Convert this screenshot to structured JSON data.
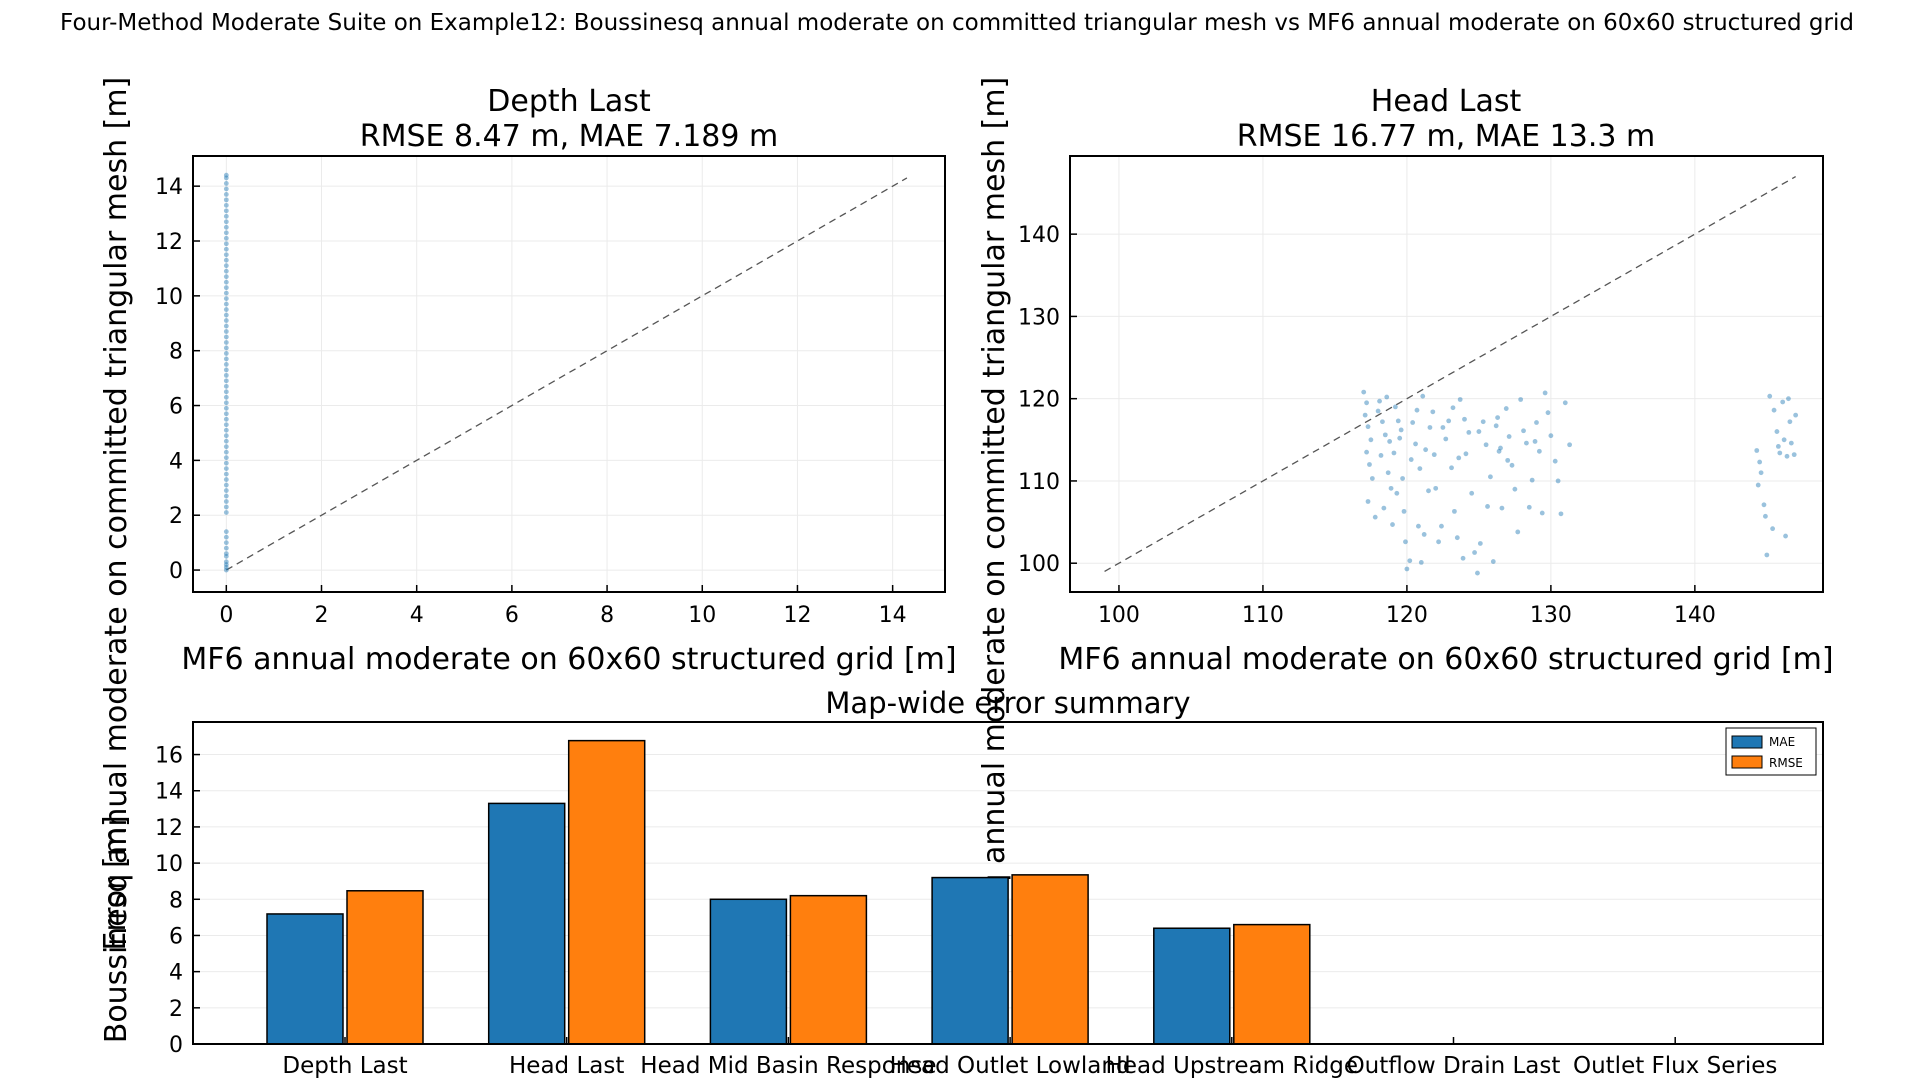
{
  "suptitle": "Four-Method Moderate Suite on Example12: Boussinesq annual moderate on committed triangular mesh vs MF6 annual moderate on 60x60 structured grid",
  "chart_data": [
    {
      "type": "scatter",
      "title": "Depth Last",
      "subtitle": "RMSE 8.47 m, MAE 7.189 m",
      "xlabel": "MF6 annual moderate on 60x60 structured grid [m]",
      "ylabel": "Boussinesq annual moderate on committed triangular mesh [m]",
      "xlim": [
        -0.7,
        15.1
      ],
      "ylim": [
        -0.8,
        15.1
      ],
      "xticks": [
        0,
        2,
        4,
        6,
        8,
        10,
        12,
        14
      ],
      "yticks": [
        0,
        2,
        4,
        6,
        8,
        10,
        12,
        14
      ],
      "grid": true,
      "point_color": "#1f77b4",
      "reference_line": [
        0,
        14.3
      ],
      "points": [
        [
          0,
          0.0
        ],
        [
          0,
          0.1
        ],
        [
          0,
          0.2
        ],
        [
          0,
          0.3
        ],
        [
          0,
          0.5
        ],
        [
          0,
          0.6
        ],
        [
          0,
          0.8
        ],
        [
          0,
          1.0
        ],
        [
          0,
          1.2
        ],
        [
          0,
          1.4
        ],
        [
          0,
          2.1
        ],
        [
          0,
          2.3
        ],
        [
          0,
          2.5
        ],
        [
          0,
          2.7
        ],
        [
          0,
          2.9
        ],
        [
          0,
          3.1
        ],
        [
          0,
          3.3
        ],
        [
          0,
          3.5
        ],
        [
          0,
          3.7
        ],
        [
          0,
          3.9
        ],
        [
          0,
          4.1
        ],
        [
          0,
          4.3
        ],
        [
          0,
          4.5
        ],
        [
          0,
          4.7
        ],
        [
          0,
          4.9
        ],
        [
          0,
          5.1
        ],
        [
          0,
          5.3
        ],
        [
          0,
          5.5
        ],
        [
          0,
          5.7
        ],
        [
          0,
          5.9
        ],
        [
          0,
          6.1
        ],
        [
          0,
          6.3
        ],
        [
          0,
          6.5
        ],
        [
          0,
          6.7
        ],
        [
          0,
          6.9
        ],
        [
          0,
          7.1
        ],
        [
          0,
          7.3
        ],
        [
          0,
          7.5
        ],
        [
          0,
          7.7
        ],
        [
          0,
          7.9
        ],
        [
          0,
          8.1
        ],
        [
          0,
          8.3
        ],
        [
          0,
          8.5
        ],
        [
          0,
          8.7
        ],
        [
          0,
          8.9
        ],
        [
          0,
          9.1
        ],
        [
          0,
          9.3
        ],
        [
          0,
          9.5
        ],
        [
          0,
          9.7
        ],
        [
          0,
          9.9
        ],
        [
          0,
          10.1
        ],
        [
          0,
          10.3
        ],
        [
          0,
          10.5
        ],
        [
          0,
          10.7
        ],
        [
          0,
          10.9
        ],
        [
          0,
          11.1
        ],
        [
          0,
          11.3
        ],
        [
          0,
          11.5
        ],
        [
          0,
          11.7
        ],
        [
          0,
          11.9
        ],
        [
          0,
          12.1
        ],
        [
          0,
          12.3
        ],
        [
          0,
          12.5
        ],
        [
          0,
          12.7
        ],
        [
          0,
          12.9
        ],
        [
          0,
          13.1
        ],
        [
          0,
          13.3
        ],
        [
          0,
          13.5
        ],
        [
          0,
          13.7
        ],
        [
          0,
          13.9
        ],
        [
          0,
          14.1
        ],
        [
          0,
          14.3
        ],
        [
          0,
          14.4
        ]
      ]
    },
    {
      "type": "scatter",
      "title": "Head Last",
      "subtitle": "RMSE 16.77 m, MAE 13.3 m",
      "xlabel": "MF6 annual moderate on 60x60 structured grid [m]",
      "ylabel": "Boussinesq annual moderate on committed triangular mesh [m]",
      "xlim": [
        96.6,
        148.9
      ],
      "ylim": [
        96.5,
        149.5
      ],
      "xticks": [
        100,
        110,
        120,
        130,
        140
      ],
      "yticks": [
        100,
        110,
        120,
        130,
        140
      ],
      "grid": true,
      "point_color": "#1f77b4",
      "reference_line": [
        99,
        147
      ],
      "points": [
        [
          117,
          120.8
        ],
        [
          117.2,
          119.5
        ],
        [
          117.1,
          118.0
        ],
        [
          117.3,
          116.6
        ],
        [
          117.5,
          115.0
        ],
        [
          117.2,
          113.5
        ],
        [
          117.4,
          112.0
        ],
        [
          117.6,
          110.3
        ],
        [
          117.3,
          107.5
        ],
        [
          117.8,
          105.6
        ],
        [
          118.0,
          118.5
        ],
        [
          118.3,
          117.2
        ],
        [
          118.5,
          115.6
        ],
        [
          118.2,
          113.1
        ],
        [
          118.7,
          111.0
        ],
        [
          118.9,
          109.1
        ],
        [
          118.4,
          106.7
        ],
        [
          119.0,
          104.7
        ],
        [
          118.6,
          120.2
        ],
        [
          119.2,
          119.0
        ],
        [
          119.4,
          117.3
        ],
        [
          119.5,
          115.2
        ],
        [
          119.1,
          113.4
        ],
        [
          119.7,
          110.3
        ],
        [
          119.3,
          108.5
        ],
        [
          119.8,
          106.3
        ],
        [
          120.0,
          99.3
        ],
        [
          120.2,
          100.3
        ],
        [
          119.9,
          102.6
        ],
        [
          120.4,
          117.1
        ],
        [
          120.6,
          114.5
        ],
        [
          120.3,
          112.6
        ],
        [
          120.8,
          104.5
        ],
        [
          121.0,
          100.1
        ],
        [
          121.2,
          103.5
        ],
        [
          121.5,
          108.8
        ],
        [
          121.3,
          113.8
        ],
        [
          121.6,
          116.5
        ],
        [
          121.8,
          118.4
        ],
        [
          121.1,
          120.3
        ],
        [
          122.0,
          109.1
        ],
        [
          122.2,
          102.6
        ],
        [
          122.4,
          104.5
        ],
        [
          122.7,
          115.1
        ],
        [
          122.9,
          117.3
        ],
        [
          123.1,
          111.6
        ],
        [
          123.3,
          106.3
        ],
        [
          123.5,
          103.1
        ],
        [
          123.7,
          119.9
        ],
        [
          123.9,
          100.6
        ],
        [
          124.1,
          113.3
        ],
        [
          124.3,
          115.9
        ],
        [
          124.5,
          108.5
        ],
        [
          124.7,
          101.3
        ],
        [
          124.9,
          98.8
        ],
        [
          125.1,
          102.4
        ],
        [
          125.3,
          117.2
        ],
        [
          125.5,
          114.4
        ],
        [
          125.8,
          110.5
        ],
        [
          126.0,
          100.2
        ],
        [
          126.2,
          116.7
        ],
        [
          126.4,
          113.6
        ],
        [
          126.6,
          106.7
        ],
        [
          126.9,
          118.8
        ],
        [
          127.1,
          115.4
        ],
        [
          127.3,
          111.9
        ],
        [
          127.5,
          109.0
        ],
        [
          127.7,
          103.8
        ],
        [
          127.9,
          119.9
        ],
        [
          128.1,
          116.1
        ],
        [
          128.3,
          114.6
        ],
        [
          128.5,
          106.8
        ],
        [
          128.7,
          110.1
        ],
        [
          129.0,
          117.1
        ],
        [
          129.2,
          113.6
        ],
        [
          129.4,
          106.1
        ],
        [
          129.6,
          120.7
        ],
        [
          129.8,
          118.3
        ],
        [
          130.0,
          115.5
        ],
        [
          130.3,
          112.4
        ],
        [
          130.5,
          110.0
        ],
        [
          130.7,
          106.0
        ],
        [
          131.0,
          119.5
        ],
        [
          131.3,
          114.4
        ],
        [
          125.0,
          116.0
        ],
        [
          126.5,
          114.0
        ],
        [
          127.0,
          112.5
        ],
        [
          124.0,
          117.5
        ],
        [
          122.5,
          116.5
        ],
        [
          121.9,
          113.2
        ],
        [
          120.7,
          118.6
        ],
        [
          119.6,
          116.2
        ],
        [
          118.8,
          114.8
        ],
        [
          118.1,
          119.7
        ],
        [
          126.3,
          117.7
        ],
        [
          128.9,
          114.8
        ],
        [
          123.2,
          118.9
        ],
        [
          120.9,
          111.5
        ],
        [
          123.6,
          112.8
        ],
        [
          125.6,
          106.9
        ],
        [
          144.3,
          113.7
        ],
        [
          144.5,
          112.3
        ],
        [
          144.6,
          111.0
        ],
        [
          144.4,
          109.5
        ],
        [
          144.8,
          107.1
        ],
        [
          144.9,
          105.7
        ],
        [
          145.0,
          101.0
        ],
        [
          145.2,
          120.3
        ],
        [
          145.4,
          104.2
        ],
        [
          145.5,
          118.6
        ],
        [
          145.7,
          116.0
        ],
        [
          145.9,
          113.4
        ],
        [
          146.1,
          119.6
        ],
        [
          146.2,
          115.0
        ],
        [
          146.4,
          113.0
        ],
        [
          146.5,
          120.0
        ],
        [
          146.7,
          114.6
        ],
        [
          146.9,
          113.2
        ],
        [
          147.0,
          118.0
        ],
        [
          146.3,
          103.3
        ],
        [
          145.8,
          114.2
        ],
        [
          146.6,
          117.2
        ]
      ]
    },
    {
      "type": "bar",
      "title": "Map-wide error summary",
      "xlabel": "",
      "ylabel": "Error [m]",
      "ylim": [
        0,
        17.8
      ],
      "yticks": [
        0,
        2,
        4,
        6,
        8,
        10,
        12,
        14,
        16
      ],
      "grid": true,
      "categories": [
        "Depth Last",
        "Head Last",
        "Head Mid Basin Response",
        "Head Outlet Lowland",
        "Head Upstream Ridge",
        "Outflow Drain Last",
        "Outlet Flux Series"
      ],
      "series": [
        {
          "name": "MAE",
          "color": "#1f77b4",
          "values": [
            7.189,
            13.3,
            8.0,
            9.2,
            6.4,
            0,
            0
          ]
        },
        {
          "name": "RMSE",
          "color": "#ff7f0e",
          "values": [
            8.47,
            16.77,
            8.2,
            9.35,
            6.6,
            0,
            0
          ]
        }
      ],
      "legend": "top-right"
    }
  ]
}
